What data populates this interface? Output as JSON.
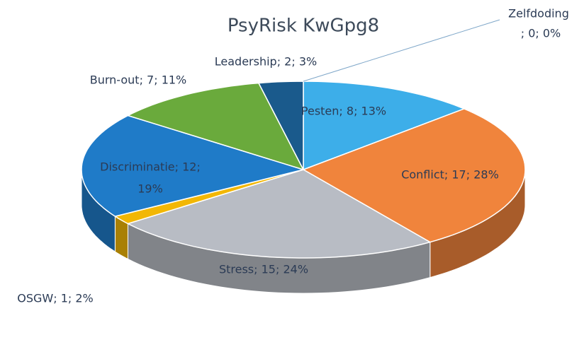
{
  "chart_data": {
    "type": "pie3d",
    "title": "PsyRisk KwGpg8",
    "values": [
      0,
      8,
      17,
      15,
      1,
      12,
      7,
      2
    ],
    "value_labels": [
      [
        "Zelfdoding",
        "; 0; 0%"
      ],
      [
        "Pesten; 8; 13%"
      ],
      [
        "Conflict; 17; 28%"
      ],
      [
        "Stress; 15; 24%"
      ],
      [
        "OSGW; 1; 2%"
      ],
      [
        "Discriminatie; 12;",
        "19%"
      ],
      [
        "Burn-out; 7; 11%"
      ],
      [
        "Leadership; 2; 3%"
      ]
    ],
    "colors": [
      "#7fb2d9",
      "#3daee9",
      "#f0843c",
      "#b8bcc4",
      "#f2b705",
      "#1f7bc8",
      "#6aaa3c",
      "#1a5a8c"
    ]
  }
}
